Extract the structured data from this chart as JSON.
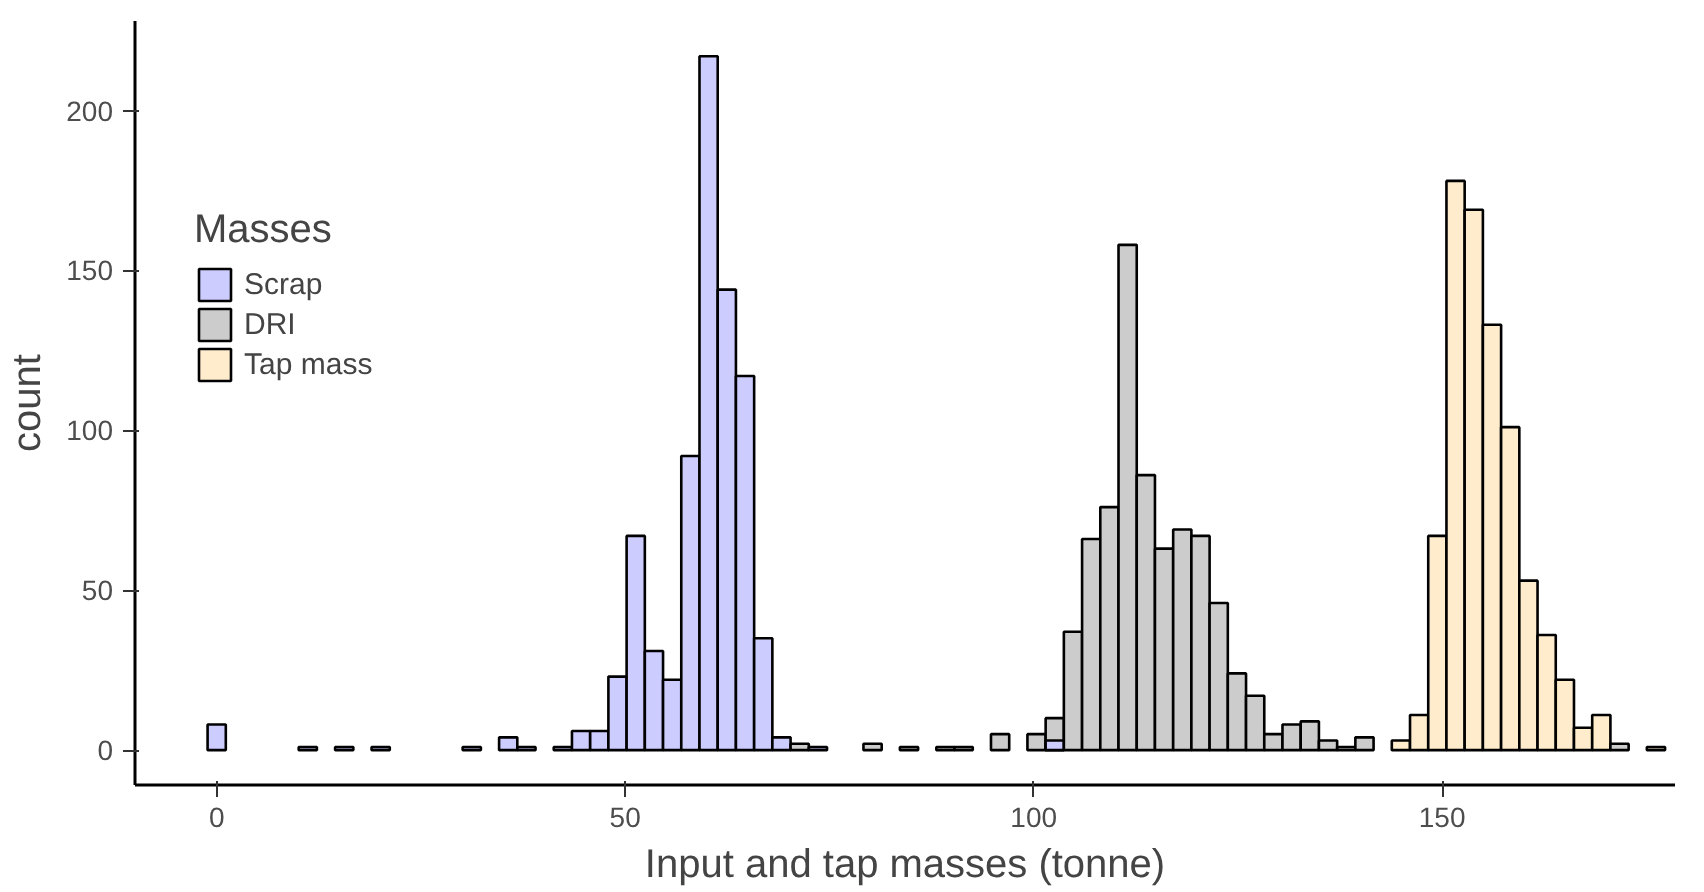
{
  "chart_data": {
    "type": "histogram",
    "xlabel": "Input and tap masses (tonne)",
    "ylabel": "count",
    "legend_title": "Masses",
    "bins": [
      -1.115,
      1.115,
      3.345,
      5.575,
      7.805,
      10.035,
      12.265,
      14.495,
      16.725,
      18.955,
      21.185,
      23.415,
      25.645,
      27.875,
      30.105,
      32.335,
      34.565,
      36.795,
      39.025,
      41.255,
      43.485,
      45.715,
      47.945,
      50.175,
      52.405,
      54.635,
      56.865,
      59.095,
      61.325,
      63.555,
      65.785,
      68.015,
      70.245,
      72.475,
      74.705,
      76.935,
      79.165,
      81.395,
      83.625,
      85.855,
      88.085,
      90.315,
      92.545,
      94.775,
      97.005,
      99.235,
      101.465,
      103.695,
      105.925,
      108.155,
      110.385,
      112.615,
      114.845,
      117.075,
      119.305,
      121.535,
      123.765,
      125.995,
      128.225,
      130.455,
      132.685,
      134.915,
      137.145,
      139.375,
      141.605,
      143.835,
      146.065,
      148.295,
      150.525,
      152.755,
      154.985,
      157.215,
      159.445,
      161.675,
      163.905,
      166.135,
      168.365,
      170.595,
      172.825,
      175.055,
      177.285
    ],
    "series": [
      {
        "name": "Scrap",
        "color": "#ccccff",
        "values": [
          8,
          0,
          0,
          0,
          0,
          1,
          0,
          1,
          0,
          1,
          0,
          0,
          0,
          0,
          1,
          0,
          4,
          1,
          0,
          1,
          6,
          6,
          23,
          67,
          31,
          22,
          92,
          217,
          144,
          117,
          35,
          4,
          0,
          1,
          0,
          0,
          0,
          0,
          0,
          0,
          0,
          0,
          0,
          0,
          0,
          0,
          3,
          0,
          0,
          0,
          null,
          0,
          0,
          0,
          null,
          0,
          0,
          0,
          0,
          0,
          0,
          0,
          0,
          0,
          0,
          0,
          0,
          0,
          0,
          0,
          0,
          0,
          0,
          0,
          0,
          0,
          0,
          0,
          0,
          0
        ]
      },
      {
        "name": "DRI",
        "color": "#cccccc",
        "values": [
          0,
          0,
          0,
          0,
          0,
          0,
          0,
          0,
          0,
          0,
          0,
          0,
          0,
          0,
          0,
          0,
          0,
          0,
          0,
          0,
          0,
          0,
          0,
          0,
          0,
          0,
          0,
          0,
          0,
          0,
          0,
          0,
          2,
          0,
          0,
          0,
          2,
          0,
          1,
          0,
          1,
          1,
          0,
          5,
          0,
          5,
          10,
          37,
          66,
          76,
          158,
          86,
          63,
          69,
          67,
          46,
          24,
          17,
          5,
          8,
          9,
          3,
          1,
          4,
          0,
          0,
          0,
          0,
          0,
          0,
          0,
          0,
          0,
          0,
          0,
          0,
          0,
          2,
          0,
          0
        ]
      },
      {
        "name": "Tap mass",
        "color": "#ffeccc",
        "values": [
          0,
          0,
          0,
          0,
          0,
          0,
          0,
          0,
          0,
          0,
          0,
          0,
          0,
          0,
          0,
          0,
          0,
          0,
          0,
          0,
          0,
          0,
          0,
          0,
          0,
          0,
          0,
          0,
          0,
          0,
          0,
          0,
          0,
          0,
          0,
          0,
          0,
          0,
          0,
          0,
          0,
          0,
          0,
          0,
          0,
          0,
          0,
          0,
          0,
          0,
          0,
          0,
          0,
          0,
          0,
          0,
          0,
          0,
          0,
          0,
          0,
          0,
          0,
          0,
          0,
          3,
          11,
          67,
          178,
          169,
          133,
          101,
          53,
          36,
          22,
          7,
          11,
          0,
          0,
          1
        ]
      }
    ],
    "xlim": [
      -10,
      178.5
    ],
    "ylim": [
      -10.9,
      228
    ],
    "xticks": [
      0,
      50,
      100,
      150
    ],
    "yticks": [
      0,
      50,
      100,
      150,
      200
    ],
    "grid": false,
    "legend": "top left"
  }
}
